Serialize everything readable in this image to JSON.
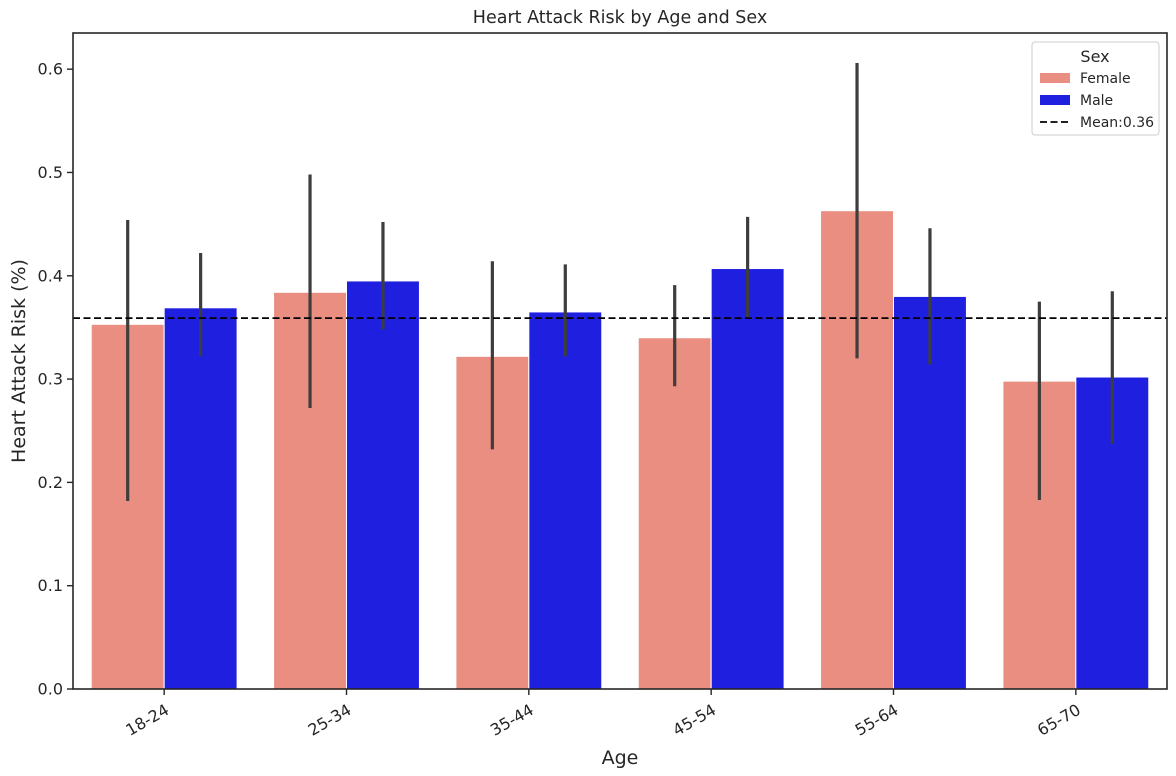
{
  "chart_data": {
    "type": "bar",
    "title": "Heart Attack Risk by Age and Sex",
    "xlabel": "Age",
    "ylabel": "Heart Attack Risk (%)",
    "categories": [
      "18-24",
      "25-34",
      "35-44",
      "45-54",
      "55-64",
      "65-70"
    ],
    "ylim": [
      0,
      0.635
    ],
    "yticks": [
      "0.0",
      "0.1",
      "0.2",
      "0.3",
      "0.4",
      "0.5",
      "0.6"
    ],
    "grid": false,
    "series": [
      {
        "name": "Female",
        "color": "#e98e81",
        "values": [
          0.353,
          0.384,
          0.322,
          0.34,
          0.463,
          0.298
        ],
        "ci_low": [
          0.182,
          0.272,
          0.232,
          0.293,
          0.32,
          0.183
        ],
        "ci_high": [
          0.454,
          0.498,
          0.414,
          0.391,
          0.606,
          0.375
        ]
      },
      {
        "name": "Male",
        "color": "#1f1fe0",
        "values": [
          0.369,
          0.395,
          0.365,
          0.407,
          0.38,
          0.302
        ],
        "ci_low": [
          0.322,
          0.348,
          0.322,
          0.36,
          0.314,
          0.237
        ],
        "ci_high": [
          0.422,
          0.452,
          0.411,
          0.457,
          0.446,
          0.385
        ]
      }
    ],
    "mean_line": {
      "value": 0.359,
      "label": "Mean:0.36",
      "color": "#000000"
    },
    "legend": {
      "title": "Sex",
      "position": "top-right"
    }
  }
}
